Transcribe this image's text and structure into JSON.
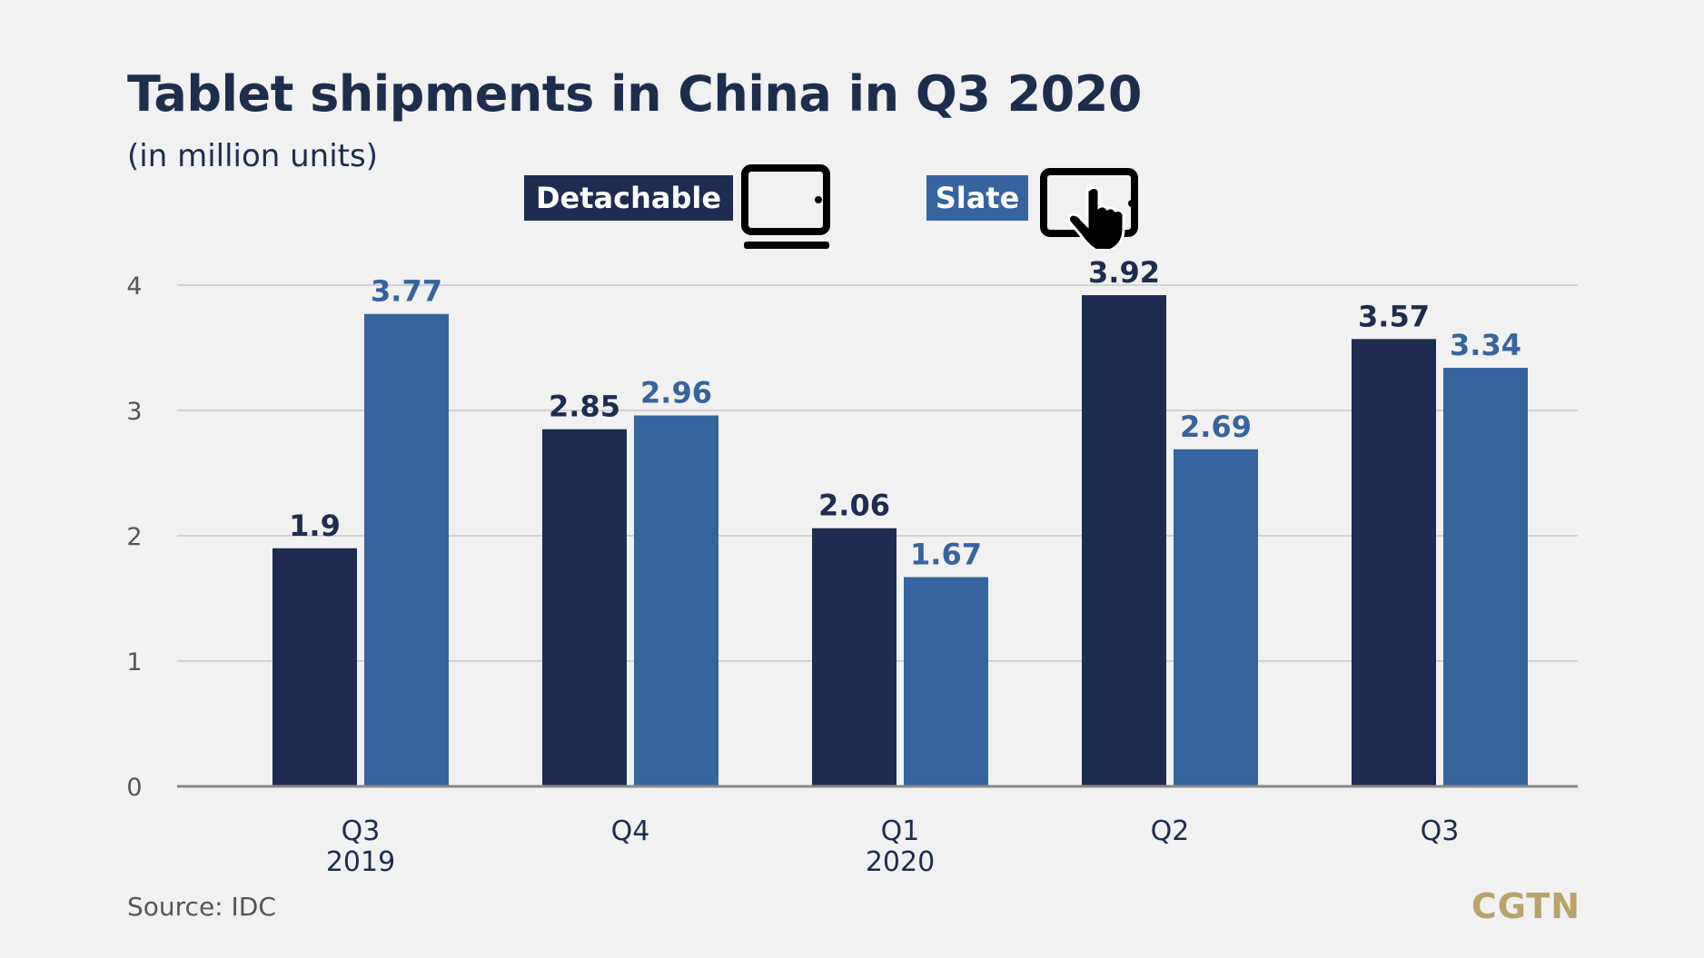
{
  "header": {
    "title": "Tablet shipments in China in Q3 2020",
    "subtitle": "(in million units)"
  },
  "legend": {
    "items": [
      {
        "label": "Detachable",
        "color": "#1f2c51",
        "icon": "tablet-icon"
      },
      {
        "label": "Slate",
        "color": "#35649f",
        "icon": "tablet-touch-icon"
      }
    ]
  },
  "footer": {
    "source": "Source: IDC",
    "brand": "CGTN"
  },
  "chart_data": {
    "type": "bar",
    "categories": [
      "Q3",
      "Q4",
      "Q1",
      "Q2",
      "Q3"
    ],
    "category_years": [
      "2019",
      "",
      "2020",
      "",
      ""
    ],
    "series": [
      {
        "name": "Detachable",
        "color": "#1f2c51",
        "label_color": "#1f2c51",
        "values": [
          1.9,
          2.85,
          2.06,
          3.92,
          3.57
        ]
      },
      {
        "name": "Slate",
        "color": "#35649f",
        "label_color": "#35649f",
        "values": [
          3.77,
          2.96,
          1.67,
          2.69,
          3.34
        ]
      }
    ],
    "value_labels": [
      [
        "1.9",
        "2.85",
        "2.06",
        "3.92",
        "3.57"
      ],
      [
        "3.77",
        "2.96",
        "1.67",
        "2.69",
        "3.34"
      ]
    ],
    "ylim": [
      0,
      4
    ],
    "yticks": [
      0,
      1,
      2,
      3,
      4
    ],
    "grid": true,
    "legend_position": "top"
  }
}
